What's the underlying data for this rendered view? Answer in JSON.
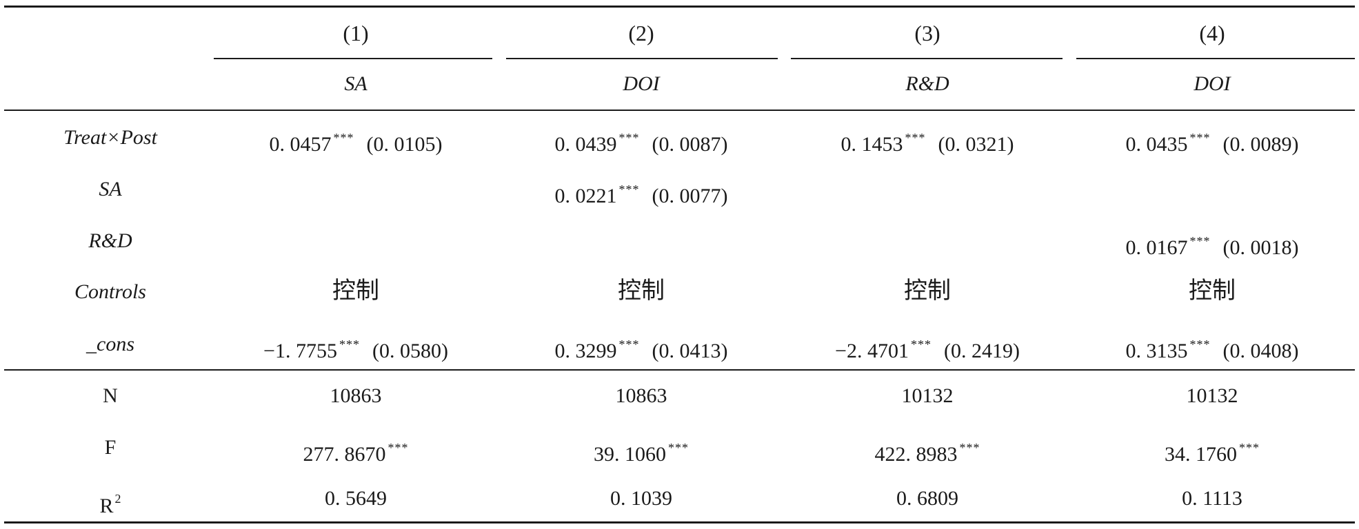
{
  "columns": [
    {
      "number": "(1)",
      "dep_var": "SA"
    },
    {
      "number": "(2)",
      "dep_var": "DOI"
    },
    {
      "number": "(3)",
      "dep_var": "R&D"
    },
    {
      "number": "(4)",
      "dep_var": "DOI"
    }
  ],
  "rows": [
    {
      "label": "Treat×Post",
      "cells": [
        {
          "coef": "0. 0457",
          "stars": "***",
          "se": "(0. 0105)"
        },
        {
          "coef": "0. 0439",
          "stars": "***",
          "se": "(0. 0087)"
        },
        {
          "coef": "0. 1453",
          "stars": "***",
          "se": "(0. 0321)"
        },
        {
          "coef": "0. 0435",
          "stars": "***",
          "se": "(0. 0089)"
        }
      ]
    },
    {
      "label": "SA",
      "cells": [
        null,
        {
          "coef": "0. 0221",
          "stars": "***",
          "se": "(0. 0077)"
        },
        null,
        null
      ]
    },
    {
      "label": "R&D",
      "cells": [
        null,
        null,
        null,
        {
          "coef": "0. 0167",
          "stars": "***",
          "se": "(0. 0018)"
        }
      ]
    },
    {
      "label": "Controls",
      "controls": [
        "控制",
        "控制",
        "控制",
        "控制"
      ]
    },
    {
      "label": "_cons",
      "cells": [
        {
          "coef": "−1. 7755",
          "stars": "***",
          "se": "(0. 0580)"
        },
        {
          "coef": "0. 3299",
          "stars": "***",
          "se": "(0. 0413)"
        },
        {
          "coef": "−2. 4701",
          "stars": "***",
          "se": "(0. 2419)"
        },
        {
          "coef": "0. 3135",
          "stars": "***",
          "se": "(0. 0408)"
        }
      ]
    }
  ],
  "stats": [
    {
      "label": "N",
      "values": [
        "10863",
        "10863",
        "10132",
        "10132"
      ],
      "stars": [
        "",
        "",
        "",
        ""
      ]
    },
    {
      "label": "F",
      "values": [
        "277. 8670",
        "39. 1060",
        "422. 8983",
        "34. 1760"
      ],
      "stars": [
        "***",
        "***",
        "***",
        "***"
      ]
    },
    {
      "label": "R",
      "label_sup": "2",
      "values": [
        "0. 5649",
        "0. 1039",
        "0. 6809",
        "0. 1113"
      ],
      "stars": [
        "",
        "",
        "",
        ""
      ]
    }
  ]
}
